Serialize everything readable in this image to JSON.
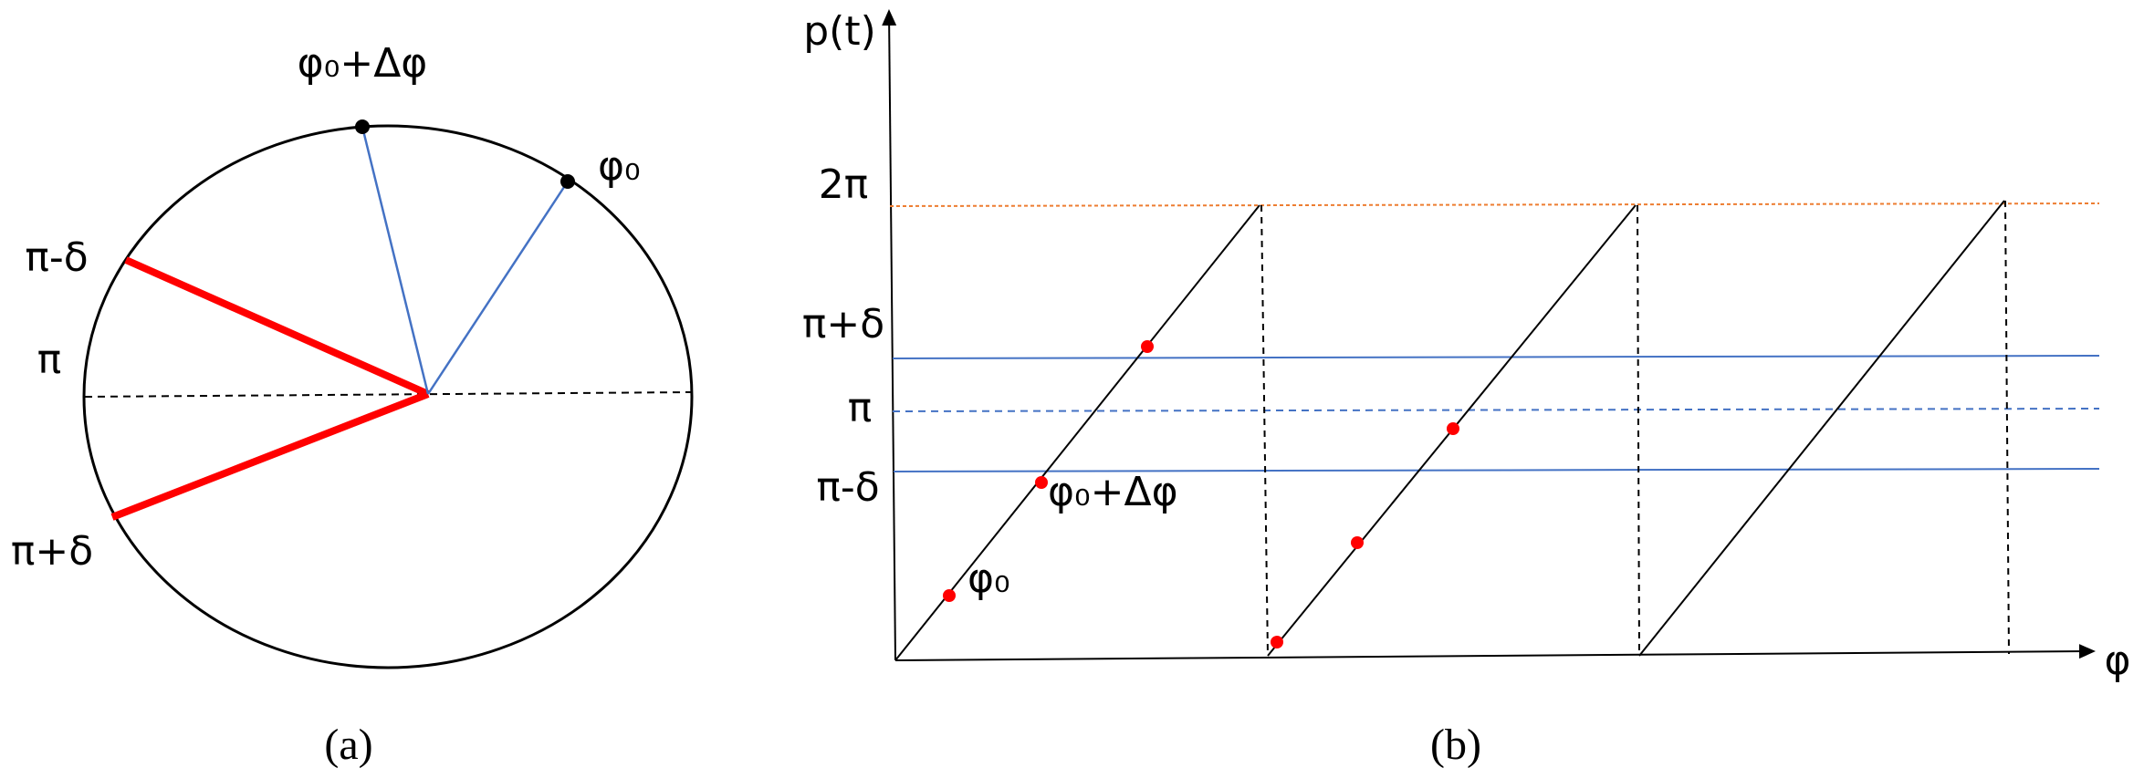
{
  "panel_a": {
    "labels": {
      "phi0_dphi": "φ₀+Δφ",
      "phi0": "φ₀",
      "pi_minus_delta": "π-δ",
      "pi": "π",
      "pi_plus_delta": "π+δ"
    },
    "caption": "(a)"
  },
  "panel_b": {
    "y_axis_label": "p(t)",
    "x_axis_label": "φ",
    "y_labels": {
      "two_pi": "2π",
      "pi_plus_delta": "π+δ",
      "pi": "π",
      "pi_minus_delta": "π-δ"
    },
    "point_labels": {
      "phi0_dphi": "φ₀+Δφ",
      "phi0": "φ₀"
    },
    "caption": "(b)"
  }
}
